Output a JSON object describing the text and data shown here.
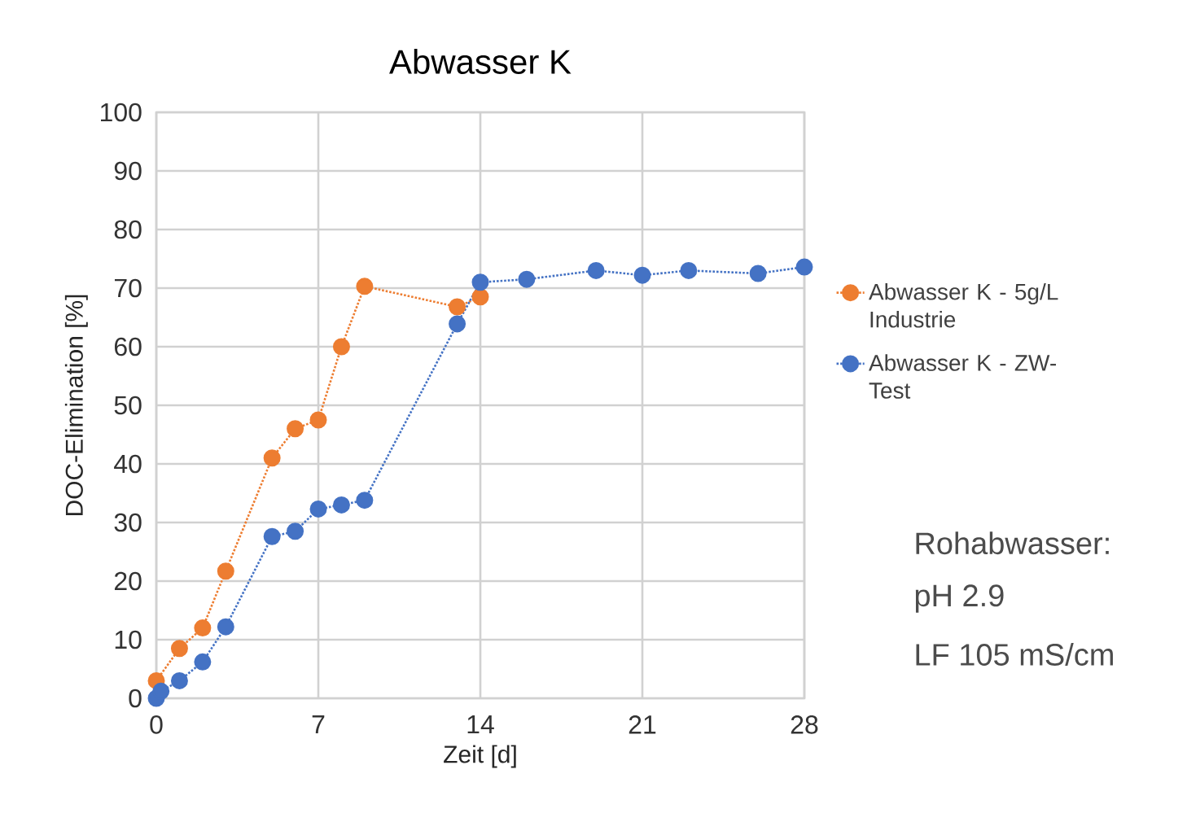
{
  "chart_data": {
    "type": "line",
    "title": "Abwasser K",
    "xlabel": "Zeit [d]",
    "ylabel": "DOC-Elimination [%]",
    "xlim": [
      0,
      28
    ],
    "xticks": [
      0,
      7,
      14,
      21,
      28
    ],
    "ylim": [
      0,
      100
    ],
    "yticks": [
      0,
      10,
      20,
      30,
      40,
      50,
      60,
      70,
      80,
      90,
      100
    ],
    "grid": true,
    "legend": "right",
    "marker": "circle",
    "line_style": "dotted",
    "annotations": [
      "Rohabwasser:",
      "pH 2.9",
      "LF 105 mS/cm"
    ],
    "series": [
      {
        "name": "Abwasser K - 5g/L Industrie",
        "color": "#ed7d31",
        "x": [
          0,
          1,
          2,
          3,
          5,
          6,
          7,
          8,
          9,
          13,
          14
        ],
        "values": [
          3,
          8.5,
          12,
          21.7,
          41,
          46,
          47.5,
          60,
          70.3,
          66.8,
          68.5
        ]
      },
      {
        "name": "Abwasser K - ZW-Test",
        "color": "#4472c4",
        "x": [
          0,
          0.2,
          1,
          2,
          3,
          5,
          6,
          7,
          8,
          9,
          13,
          14,
          16,
          19,
          21,
          23,
          26,
          28
        ],
        "values": [
          0,
          1.2,
          3,
          6.2,
          12.2,
          27.6,
          28.5,
          32.3,
          33,
          33.8,
          63.9,
          71,
          71.5,
          73,
          72.2,
          73,
          72.5,
          73.6
        ]
      }
    ]
  }
}
